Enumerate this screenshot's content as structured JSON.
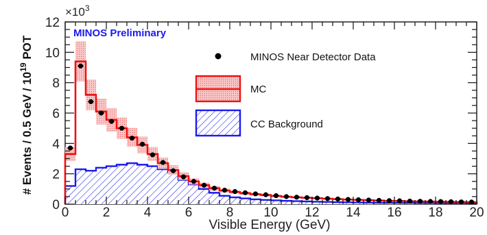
{
  "chart_data": {
    "type": "histogram",
    "title": "MINOS Preliminary",
    "xlabel": "Visible Energy (GeV)",
    "ylabel_parts": {
      "main": "# Events / 0.5 GeV / 10",
      "exp": "19",
      "suffix": " POT"
    },
    "y_multiplier": {
      "base": "×10",
      "exp": "3"
    },
    "xlim": [
      0,
      20
    ],
    "ylim": [
      0,
      12
    ],
    "bin_width": 0.5,
    "x_ticks": [
      "0",
      "2",
      "4",
      "6",
      "8",
      "10",
      "12",
      "14",
      "16",
      "18",
      "20"
    ],
    "y_ticks": [
      "0",
      "2",
      "4",
      "6",
      "8",
      "10",
      "12"
    ],
    "legend": {
      "data": "MINOS Near Detector Data",
      "mc": "MC",
      "cc": "CC Background"
    },
    "colors": {
      "data": "#000000",
      "mc": "#ee1111",
      "mc_band": "#f7a9a9",
      "cc": "#1a1aee",
      "prelim": "#1a1aee"
    },
    "series": [
      {
        "name": "MINOS Near Detector Data",
        "values": [
          3.7,
          9.1,
          6.75,
          6.0,
          5.45,
          5.0,
          4.35,
          3.95,
          3.25,
          2.75,
          2.2,
          1.8,
          1.5,
          1.25,
          1.05,
          0.92,
          0.83,
          0.75,
          0.68,
          0.62,
          0.56,
          0.5,
          0.46,
          0.43,
          0.4,
          0.37,
          0.34,
          0.31,
          0.29,
          0.27,
          0.25,
          0.23,
          0.22,
          0.2,
          0.19,
          0.18,
          0.17,
          0.16,
          0.15,
          0.14
        ]
      },
      {
        "name": "MC",
        "values": [
          3.3,
          9.4,
          7.2,
          6.1,
          5.55,
          5.0,
          4.4,
          3.9,
          3.3,
          2.7,
          2.25,
          1.85,
          1.5,
          1.25,
          1.05,
          0.9,
          0.8,
          0.72,
          0.65,
          0.6,
          0.54,
          0.49,
          0.45,
          0.42,
          0.39,
          0.36,
          0.33,
          0.3,
          0.28,
          0.26,
          0.24,
          0.22,
          0.21,
          0.19,
          0.18,
          0.17,
          0.16,
          0.15,
          0.14,
          0.13
        ],
        "uncertainty_fraction": 0.14
      },
      {
        "name": "CC Background",
        "values": [
          1.2,
          2.3,
          2.2,
          2.4,
          2.5,
          2.6,
          2.7,
          2.6,
          2.5,
          2.3,
          2.1,
          1.6,
          1.3,
          1.0,
          0.75,
          0.55,
          0.45,
          0.38,
          0.32,
          0.28,
          0.25,
          0.22,
          0.2,
          0.18,
          0.16,
          0.15,
          0.13,
          0.12,
          0.11,
          0.1,
          0.09,
          0.09,
          0.08,
          0.08,
          0.07,
          0.07,
          0.06,
          0.06,
          0.06,
          0.05
        ]
      }
    ]
  }
}
